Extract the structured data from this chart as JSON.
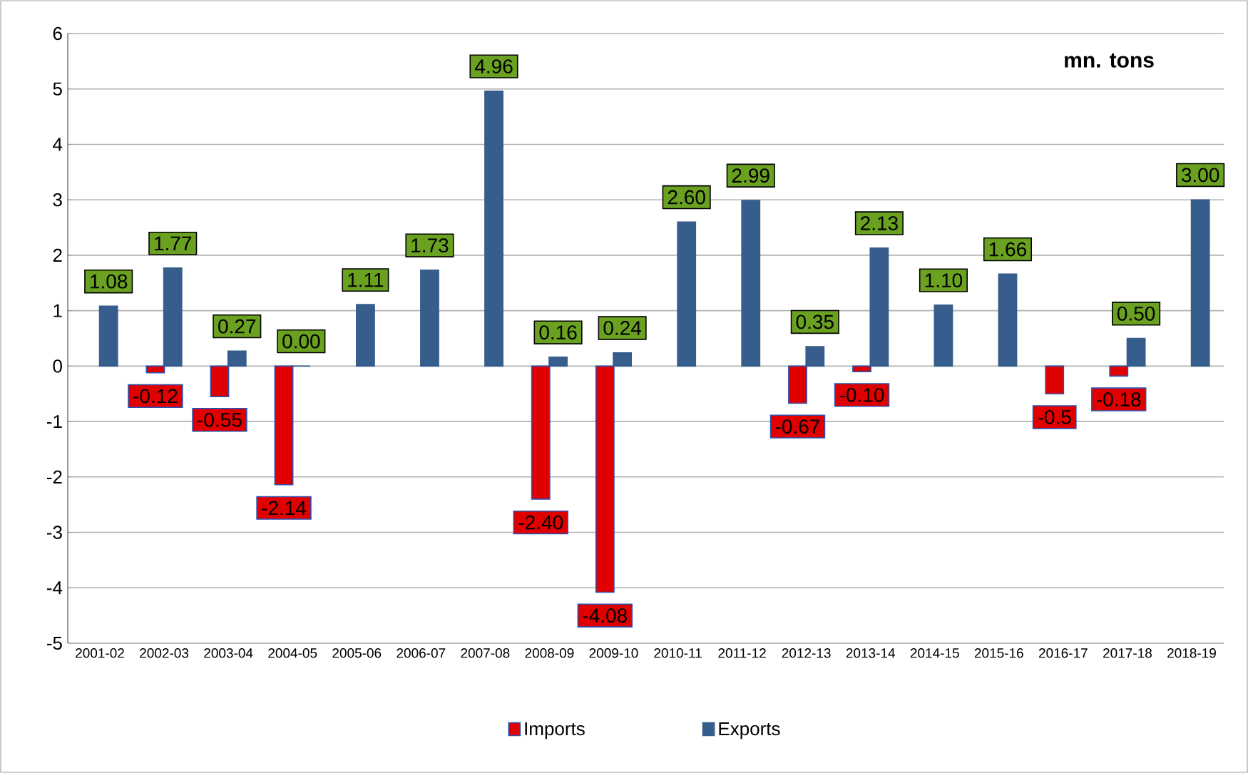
{
  "chart_data": {
    "type": "bar",
    "categories": [
      "2001-02",
      "2002-03",
      "2003-04",
      "2004-05",
      "2005-06",
      "2006-07",
      "2007-08",
      "2008-09",
      "2009-10",
      "2010-11",
      "2011-12",
      "2012-13",
      "2013-14",
      "2014-15",
      "2015-16",
      "2016-17",
      "2017-18",
      "2018-19"
    ],
    "series": [
      {
        "name": "Imports",
        "color": "#e00000",
        "values": [
          null,
          -0.12,
          -0.55,
          -2.14,
          null,
          null,
          null,
          -2.4,
          -4.08,
          null,
          null,
          -0.67,
          -0.1,
          null,
          null,
          -0.5,
          -0.18,
          null
        ],
        "value_labels": [
          null,
          "-0.12",
          "-0.55",
          "-2.14",
          null,
          null,
          null,
          "-2.40",
          "-4.08",
          null,
          null,
          "-0.67",
          "-0.10",
          null,
          null,
          "-0.5",
          "-0.18",
          null
        ]
      },
      {
        "name": "Exports",
        "color": "#375d8c",
        "values": [
          1.08,
          1.77,
          0.27,
          0.0,
          1.11,
          1.73,
          4.96,
          0.16,
          0.24,
          2.6,
          2.99,
          0.35,
          2.13,
          1.1,
          1.66,
          null,
          0.5,
          3.0
        ],
        "value_labels": [
          "1.08",
          "1.77",
          "0.27",
          "0.00",
          "1.11",
          "1.73",
          "4.96",
          "0.16",
          "0.24",
          "2.60",
          "2.99",
          "0.35",
          "2.13",
          "1.10",
          "1.66",
          null,
          "0.50",
          "3.00"
        ]
      }
    ],
    "ylim": [
      -5,
      6
    ],
    "yticks": [
      -5,
      -4,
      -3,
      -2,
      -1,
      0,
      1,
      2,
      3,
      4,
      5,
      6
    ],
    "grid": "y",
    "legend": "bottom",
    "annotations": [
      "mn. tons"
    ]
  }
}
